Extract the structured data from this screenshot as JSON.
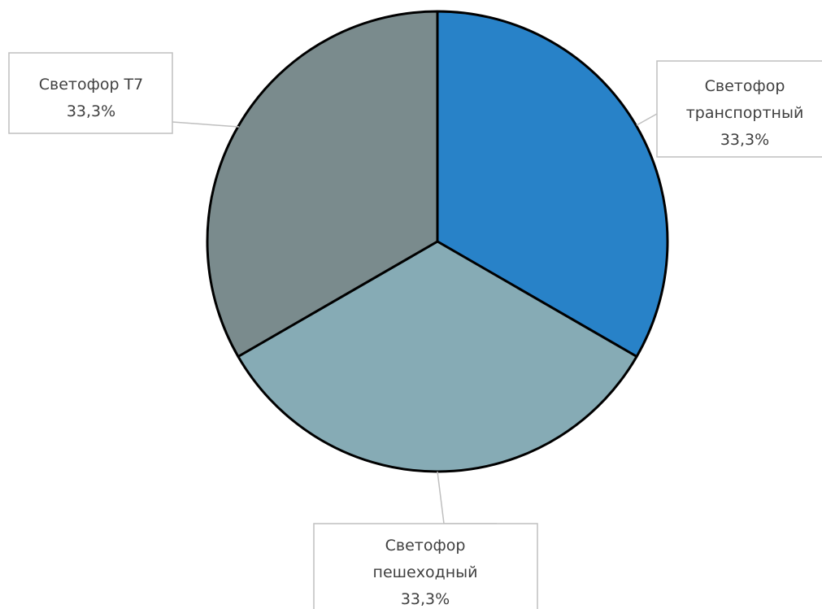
{
  "chart_data": {
    "type": "pie",
    "title": "",
    "start_angle_deg": 0,
    "direction": "clockwise",
    "slices": [
      {
        "name": "Светофор транспортный",
        "label_lines": [
          "Светофор",
          "транспортный"
        ],
        "value": 1,
        "percent_label": "33,3%",
        "color": "#2882C8"
      },
      {
        "name": "Светофор пешеходный",
        "label_lines": [
          "Светофор",
          "пешеходный"
        ],
        "value": 1,
        "percent_label": "33,3%",
        "color": "#86ABB5"
      },
      {
        "name": "Светофор Т7",
        "label_lines": [
          "Светофор Т7"
        ],
        "value": 1,
        "percent_label": "33,3%",
        "color": "#7A8B8D"
      }
    ],
    "slice_border_color": "#000000",
    "label_box_border_color": "#BFBFBF",
    "leader_line_color": "#BFBFBF",
    "label_text_color": "#404040",
    "legend": "none",
    "data_labels": "callouts"
  }
}
